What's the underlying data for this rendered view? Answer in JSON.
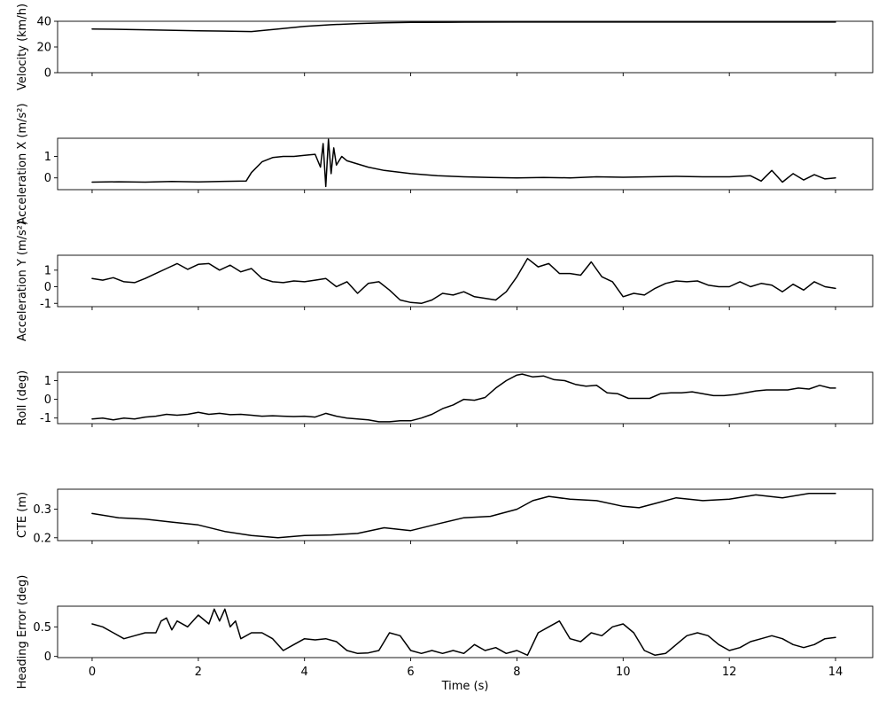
{
  "chart_data": [
    {
      "type": "line",
      "ylabel": "Velocity (km/h)",
      "xlim": [
        -0.65,
        14.7
      ],
      "ylim": [
        0,
        40
      ],
      "yticks": [
        0,
        20,
        40
      ],
      "xticks": [
        0,
        2,
        4,
        6,
        8,
        10,
        12,
        14
      ],
      "show_x_ticklabels": false,
      "series": [
        {
          "x": [
            0,
            1,
            2,
            3,
            3.5,
            4,
            4.5,
            5,
            5.5,
            6,
            7,
            8,
            10,
            12,
            14
          ],
          "y": [
            34,
            33.4,
            32.6,
            32,
            34,
            36,
            37.3,
            38.2,
            38.8,
            39.1,
            39.3,
            39.4,
            39.4,
            39.4,
            39.4
          ]
        }
      ]
    },
    {
      "type": "line",
      "ylabel": "Acceleration X (m/s²)",
      "xlim": [
        -0.65,
        14.7
      ],
      "ylim": [
        -0.55,
        1.85
      ],
      "yticks": [
        0,
        1
      ],
      "xticks": [
        0,
        2,
        4,
        6,
        8,
        10,
        12,
        14
      ],
      "show_x_ticklabels": false,
      "series": [
        {
          "x": [
            0,
            0.5,
            1,
            1.5,
            2,
            2.5,
            2.9,
            3.0,
            3.2,
            3.4,
            3.6,
            3.8,
            4.0,
            4.2,
            4.3,
            4.35,
            4.4,
            4.45,
            4.5,
            4.55,
            4.6,
            4.7,
            4.8,
            5.0,
            5.2,
            5.5,
            6,
            6.5,
            7,
            7.5,
            8,
            8.5,
            9,
            9.5,
            10,
            10.5,
            11,
            11.5,
            12,
            12.4,
            12.6,
            12.8,
            13,
            13.2,
            13.4,
            13.6,
            13.8,
            14
          ],
          "y": [
            -0.2,
            -0.18,
            -0.2,
            -0.17,
            -0.19,
            -0.16,
            -0.15,
            0.25,
            0.75,
            0.95,
            1.0,
            1.0,
            1.05,
            1.1,
            0.5,
            1.6,
            -0.4,
            1.8,
            0.2,
            1.4,
            0.6,
            1.0,
            0.8,
            0.65,
            0.5,
            0.35,
            0.2,
            0.1,
            0.05,
            0.02,
            0.0,
            0.02,
            0.0,
            0.05,
            0.03,
            0.05,
            0.07,
            0.05,
            0.05,
            0.1,
            -0.15,
            0.35,
            -0.2,
            0.2,
            -0.1,
            0.15,
            -0.05,
            0.0
          ]
        }
      ]
    },
    {
      "type": "line",
      "ylabel": "Acceleration Y (m/s²)",
      "xlim": [
        -0.65,
        14.7
      ],
      "ylim": [
        -1.2,
        1.9
      ],
      "yticks": [
        -1,
        0,
        1
      ],
      "xticks": [
        0,
        2,
        4,
        6,
        8,
        10,
        12,
        14
      ],
      "show_x_ticklabels": false,
      "series": [
        {
          "x": [
            0,
            0.2,
            0.4,
            0.6,
            0.8,
            1.0,
            1.2,
            1.4,
            1.6,
            1.8,
            2.0,
            2.2,
            2.4,
            2.6,
            2.8,
            3.0,
            3.2,
            3.4,
            3.6,
            3.8,
            4.0,
            4.2,
            4.4,
            4.6,
            4.8,
            5.0,
            5.2,
            5.4,
            5.6,
            5.8,
            6.0,
            6.2,
            6.4,
            6.6,
            6.8,
            7.0,
            7.2,
            7.4,
            7.6,
            7.8,
            8.0,
            8.2,
            8.4,
            8.6,
            8.8,
            9.0,
            9.2,
            9.4,
            9.6,
            9.8,
            10.0,
            10.2,
            10.4,
            10.6,
            10.8,
            11.0,
            11.2,
            11.4,
            11.6,
            11.8,
            12.0,
            12.2,
            12.4,
            12.6,
            12.8,
            13.0,
            13.2,
            13.4,
            13.6,
            13.8,
            14.0
          ],
          "y": [
            0.5,
            0.4,
            0.55,
            0.3,
            0.25,
            0.5,
            0.8,
            1.1,
            1.4,
            1.05,
            1.35,
            1.4,
            1.0,
            1.3,
            0.9,
            1.1,
            0.5,
            0.3,
            0.25,
            0.35,
            0.3,
            0.4,
            0.5,
            0.0,
            0.3,
            -0.4,
            0.2,
            0.3,
            -0.2,
            -0.8,
            -0.95,
            -1.0,
            -0.8,
            -0.4,
            -0.5,
            -0.3,
            -0.6,
            -0.7,
            -0.8,
            -0.3,
            0.6,
            1.7,
            1.2,
            1.4,
            0.8,
            0.8,
            0.7,
            1.5,
            0.6,
            0.3,
            -0.6,
            -0.4,
            -0.5,
            -0.1,
            0.2,
            0.35,
            0.3,
            0.35,
            0.1,
            0.0,
            0.0,
            0.3,
            0.0,
            0.2,
            0.1,
            -0.3,
            0.15,
            -0.2,
            0.3,
            0.0,
            -0.1
          ]
        }
      ]
    },
    {
      "type": "line",
      "ylabel": "Roll (deg)",
      "xlim": [
        -0.65,
        14.7
      ],
      "ylim": [
        -1.3,
        1.45
      ],
      "yticks": [
        -1,
        0,
        1
      ],
      "xticks": [
        0,
        2,
        4,
        6,
        8,
        10,
        12,
        14
      ],
      "show_x_ticklabels": false,
      "series": [
        {
          "x": [
            0,
            0.2,
            0.4,
            0.6,
            0.8,
            1.0,
            1.2,
            1.4,
            1.6,
            1.8,
            2.0,
            2.2,
            2.4,
            2.6,
            2.8,
            3.0,
            3.2,
            3.4,
            3.6,
            3.8,
            4.0,
            4.2,
            4.4,
            4.6,
            4.8,
            5.0,
            5.2,
            5.4,
            5.6,
            5.8,
            6.0,
            6.2,
            6.4,
            6.6,
            6.8,
            7.0,
            7.2,
            7.4,
            7.6,
            7.8,
            8.0,
            8.1,
            8.3,
            8.5,
            8.7,
            8.9,
            9.1,
            9.3,
            9.5,
            9.7,
            9.9,
            10.1,
            10.3,
            10.5,
            10.7,
            10.9,
            11.1,
            11.3,
            11.5,
            11.7,
            11.9,
            12.1,
            12.3,
            12.5,
            12.7,
            12.9,
            13.1,
            13.3,
            13.5,
            13.7,
            13.9,
            14.0
          ],
          "y": [
            -1.05,
            -1.0,
            -1.1,
            -1.0,
            -1.05,
            -0.95,
            -0.9,
            -0.8,
            -0.85,
            -0.8,
            -0.7,
            -0.8,
            -0.75,
            -0.82,
            -0.8,
            -0.85,
            -0.9,
            -0.88,
            -0.9,
            -0.92,
            -0.9,
            -0.95,
            -0.75,
            -0.9,
            -1.0,
            -1.05,
            -1.1,
            -1.2,
            -1.2,
            -1.15,
            -1.15,
            -1.0,
            -0.8,
            -0.5,
            -0.3,
            0.0,
            -0.05,
            0.1,
            0.6,
            1.0,
            1.3,
            1.35,
            1.2,
            1.25,
            1.05,
            1.0,
            0.8,
            0.7,
            0.75,
            0.35,
            0.3,
            0.05,
            0.05,
            0.05,
            0.3,
            0.35,
            0.35,
            0.4,
            0.3,
            0.2,
            0.2,
            0.25,
            0.35,
            0.45,
            0.5,
            0.5,
            0.5,
            0.6,
            0.55,
            0.75,
            0.6,
            0.6
          ]
        }
      ]
    },
    {
      "type": "line",
      "ylabel": "CTE (m)",
      "xlim": [
        -0.65,
        14.7
      ],
      "ylim": [
        0.19,
        0.37
      ],
      "yticks": [
        0.2,
        0.3
      ],
      "xticks": [
        0,
        2,
        4,
        6,
        8,
        10,
        12,
        14
      ],
      "show_x_ticklabels": false,
      "series": [
        {
          "x": [
            0,
            0.5,
            1,
            1.5,
            2,
            2.5,
            3,
            3.5,
            4,
            4.5,
            5,
            5.5,
            6,
            6.5,
            7,
            7.5,
            8,
            8.3,
            8.6,
            9,
            9.5,
            10,
            10.3,
            10.6,
            11,
            11.5,
            12,
            12.5,
            13,
            13.5,
            14
          ],
          "y": [
            0.285,
            0.27,
            0.265,
            0.255,
            0.245,
            0.222,
            0.208,
            0.2,
            0.208,
            0.21,
            0.215,
            0.235,
            0.225,
            0.248,
            0.27,
            0.275,
            0.3,
            0.33,
            0.345,
            0.335,
            0.33,
            0.31,
            0.305,
            0.32,
            0.34,
            0.33,
            0.335,
            0.35,
            0.34,
            0.355,
            0.355
          ]
        }
      ]
    },
    {
      "type": "line",
      "xlabel": "Time (s)",
      "ylabel": "Heading Error (deg)",
      "xlim": [
        -0.65,
        14.7
      ],
      "ylim": [
        -0.02,
        0.85
      ],
      "yticks": [
        0.0,
        0.5
      ],
      "xticks": [
        0,
        2,
        4,
        6,
        8,
        10,
        12,
        14
      ],
      "show_x_ticklabels": true,
      "series": [
        {
          "x": [
            0,
            0.2,
            0.4,
            0.6,
            0.8,
            1.0,
            1.2,
            1.3,
            1.4,
            1.5,
            1.6,
            1.8,
            2.0,
            2.2,
            2.3,
            2.4,
            2.5,
            2.6,
            2.7,
            2.8,
            3.0,
            3.2,
            3.4,
            3.6,
            3.8,
            4.0,
            4.2,
            4.4,
            4.6,
            4.8,
            5.0,
            5.2,
            5.4,
            5.6,
            5.8,
            6.0,
            6.2,
            6.4,
            6.6,
            6.8,
            7.0,
            7.2,
            7.4,
            7.6,
            7.8,
            8.0,
            8.2,
            8.4,
            8.6,
            8.8,
            9.0,
            9.2,
            9.4,
            9.6,
            9.8,
            10.0,
            10.2,
            10.4,
            10.6,
            10.8,
            11.0,
            11.2,
            11.4,
            11.6,
            11.8,
            12.0,
            12.2,
            12.4,
            12.6,
            12.8,
            13.0,
            13.2,
            13.4,
            13.6,
            13.8,
            14.0
          ],
          "y": [
            0.55,
            0.5,
            0.4,
            0.3,
            0.35,
            0.4,
            0.4,
            0.6,
            0.65,
            0.45,
            0.6,
            0.5,
            0.7,
            0.55,
            0.8,
            0.6,
            0.8,
            0.5,
            0.6,
            0.3,
            0.4,
            0.4,
            0.3,
            0.1,
            0.2,
            0.3,
            0.28,
            0.3,
            0.25,
            0.1,
            0.05,
            0.06,
            0.1,
            0.4,
            0.35,
            0.1,
            0.05,
            0.1,
            0.05,
            0.1,
            0.05,
            0.2,
            0.1,
            0.15,
            0.05,
            0.1,
            0.02,
            0.4,
            0.5,
            0.6,
            0.3,
            0.25,
            0.4,
            0.35,
            0.5,
            0.55,
            0.4,
            0.1,
            0.02,
            0.05,
            0.2,
            0.35,
            0.4,
            0.35,
            0.2,
            0.1,
            0.15,
            0.25,
            0.3,
            0.35,
            0.3,
            0.2,
            0.15,
            0.2,
            0.3,
            0.32
          ]
        }
      ]
    }
  ]
}
